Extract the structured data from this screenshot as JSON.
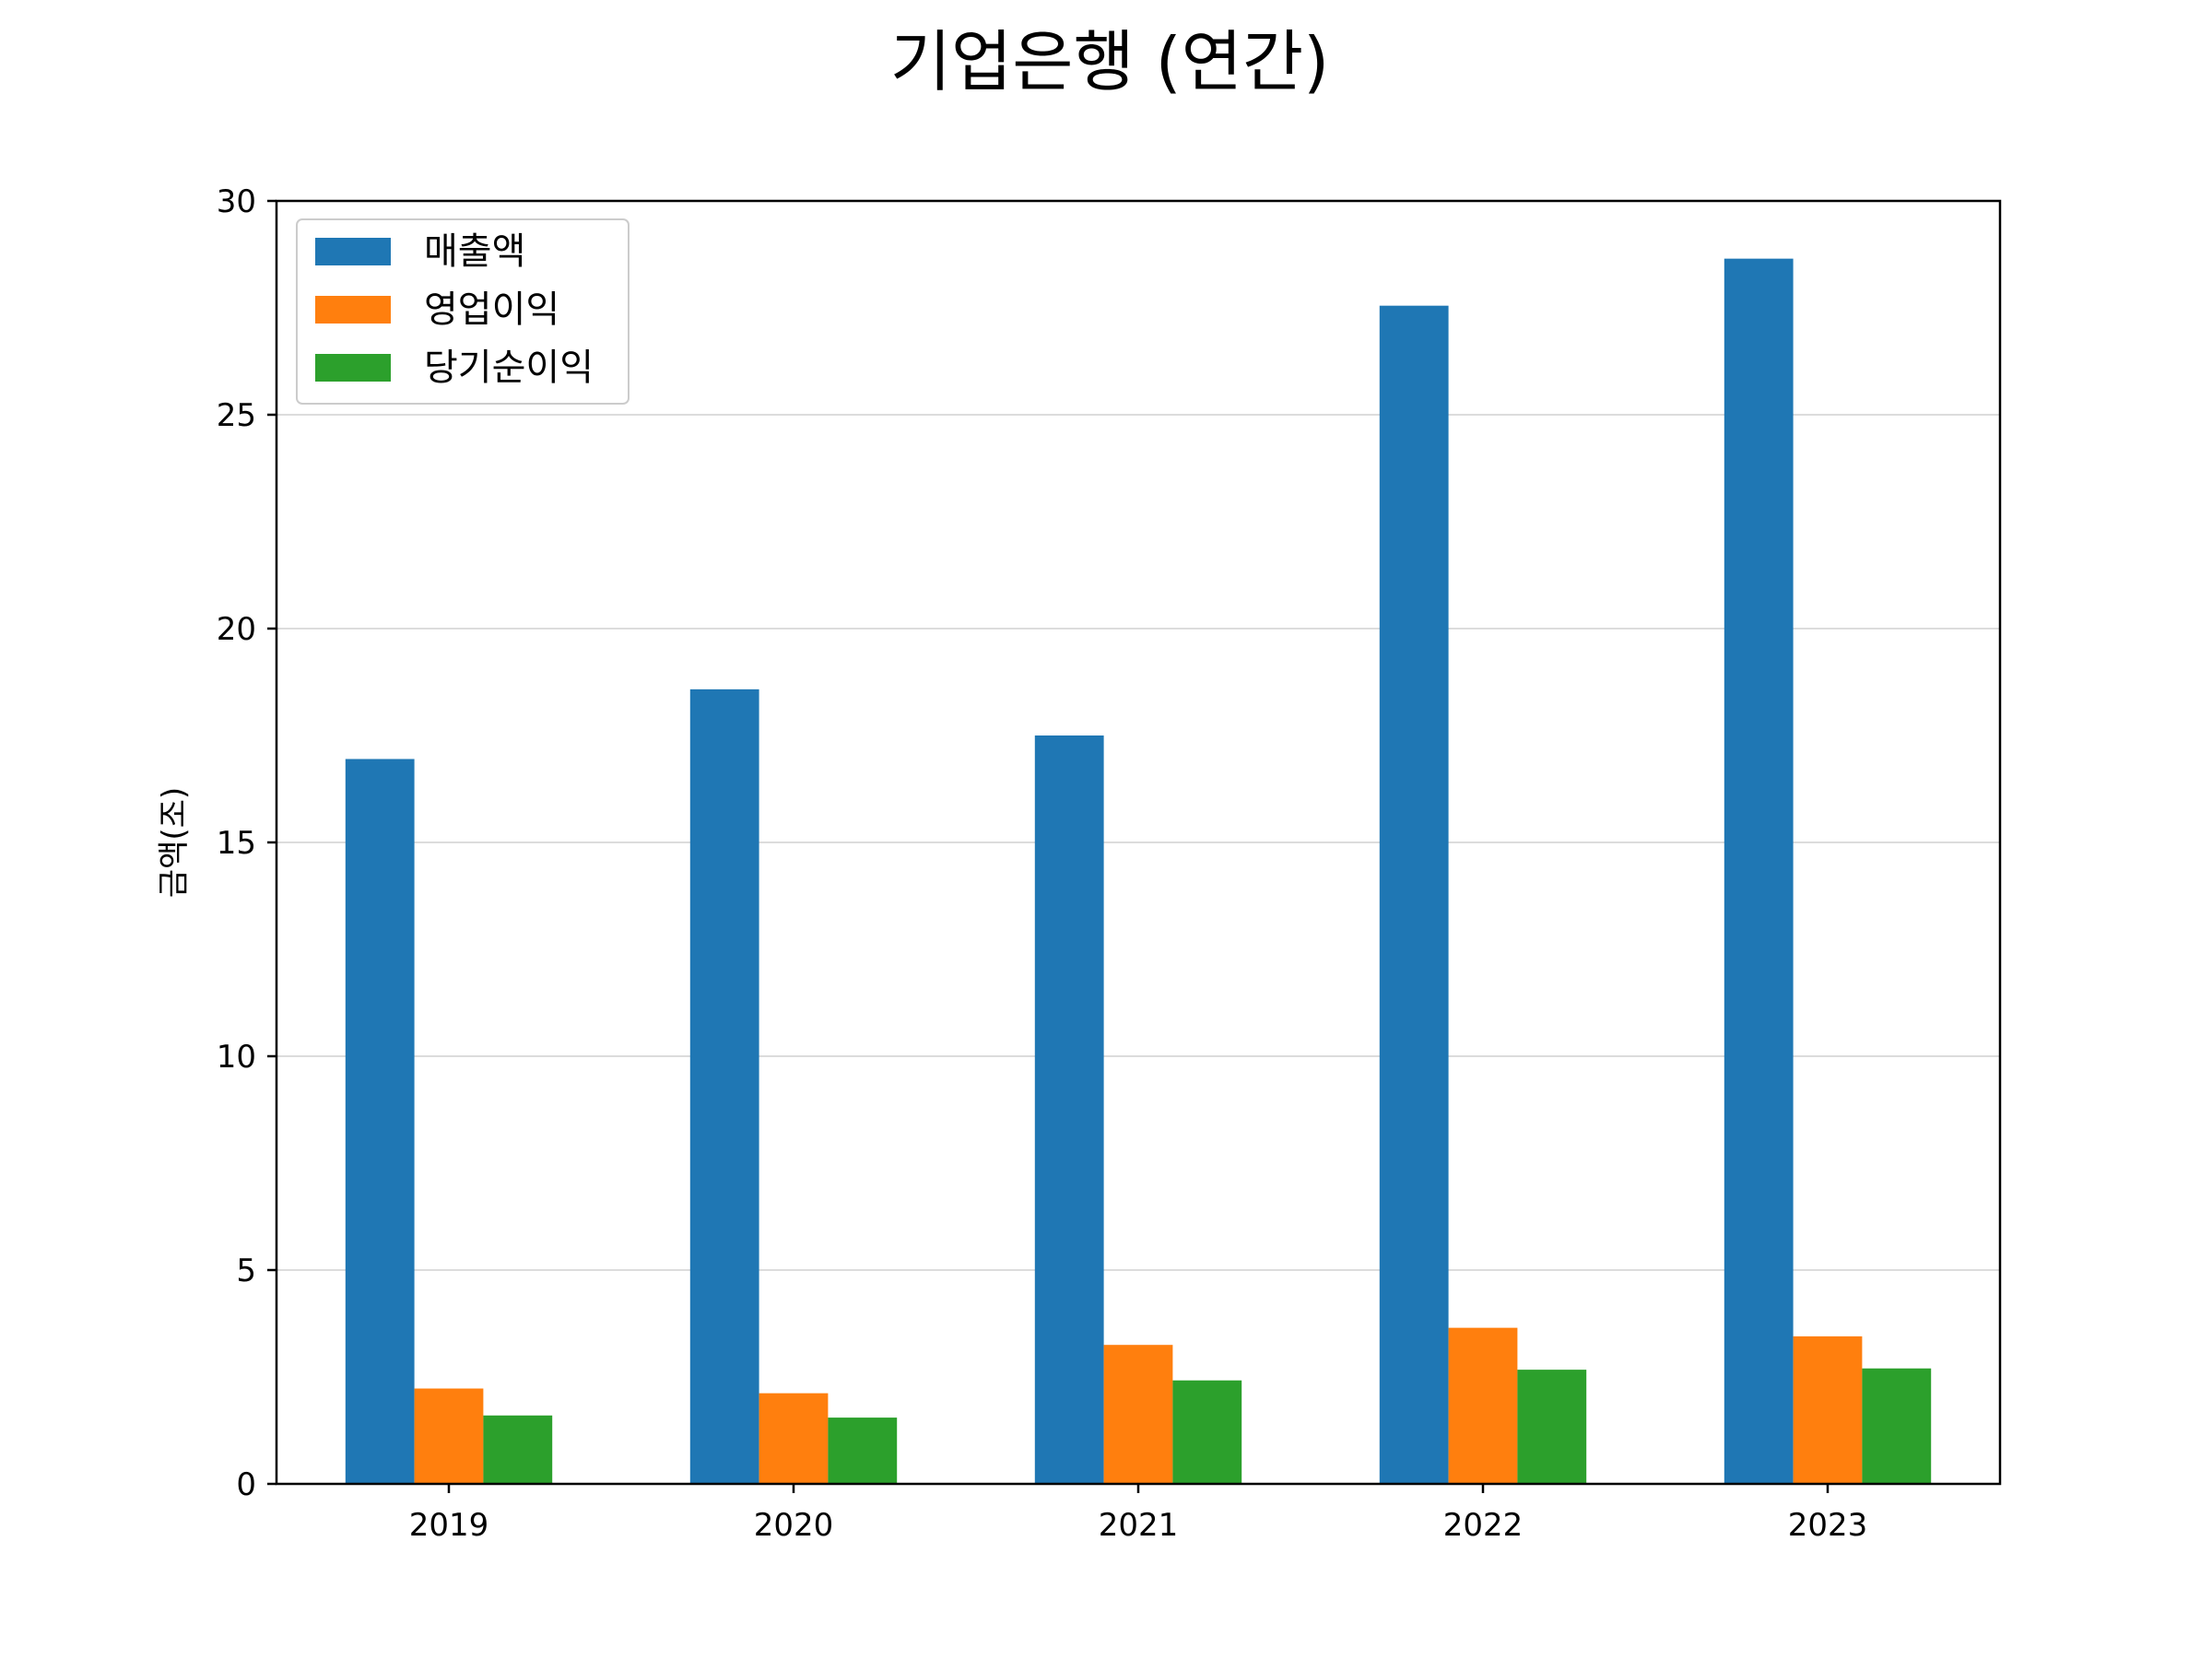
{
  "chart_data": {
    "type": "bar",
    "title": "기업은행 (연간)",
    "xlabel": "",
    "ylabel": "금액(조)",
    "categories": [
      "2019",
      "2020",
      "2021",
      "2022",
      "2023"
    ],
    "series": [
      {
        "name": "매출액",
        "color": "#1f77b4",
        "values": [
          16.95,
          18.58,
          17.5,
          27.55,
          28.65
        ]
      },
      {
        "name": "영업이익",
        "color": "#ff7f0e",
        "values": [
          2.23,
          2.12,
          3.25,
          3.65,
          3.45
        ]
      },
      {
        "name": "당기순이익",
        "color": "#2ca02c",
        "values": [
          1.6,
          1.55,
          2.42,
          2.67,
          2.7
        ]
      }
    ],
    "ylim": [
      0,
      30
    ],
    "yticks": [
      0,
      5,
      10,
      15,
      20,
      25,
      30
    ],
    "grid": "horizontal",
    "legend": "top-left"
  }
}
